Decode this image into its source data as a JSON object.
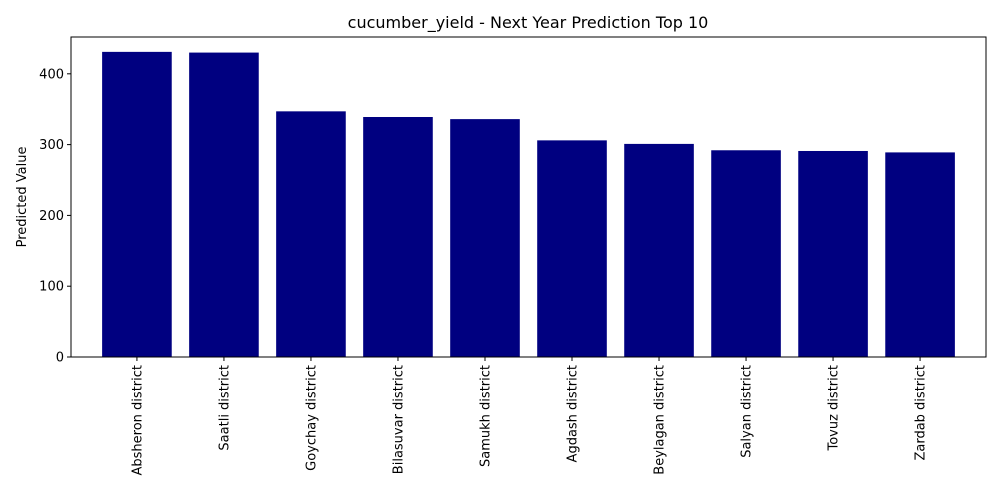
{
  "chart_data": {
    "type": "bar",
    "title": "cucumber_yield - Next Year Prediction Top 10",
    "xlabel": "",
    "ylabel": "Predicted Value",
    "categories": [
      "Absheron district",
      "Saatli district",
      "Goychay district",
      "Bilasuvar district",
      "Samukh district",
      "Agdash district",
      "Beylagan district",
      "Salyan district",
      "Tovuz district",
      "Zardab district"
    ],
    "values": [
      431,
      430,
      347,
      339,
      336,
      306,
      301,
      292,
      291,
      289
    ],
    "ylim": [
      0,
      452
    ],
    "yticks": [
      0,
      100,
      200,
      300,
      400
    ],
    "bar_color": "#000080",
    "grid": false,
    "legend": "none"
  }
}
